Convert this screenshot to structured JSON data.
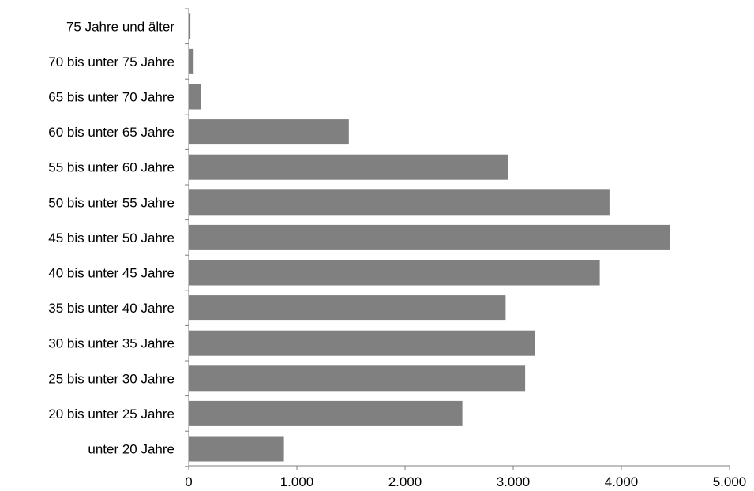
{
  "chart_data": {
    "type": "bar",
    "orientation": "horizontal",
    "title": "",
    "xlabel": "",
    "ylabel": "",
    "categories": [
      "75 Jahre und älter",
      "70 bis unter 75 Jahre",
      "65 bis unter 70 Jahre",
      "60 bis unter 65 Jahre",
      "55 bis unter 60 Jahre",
      "50 bis unter 55 Jahre",
      "45 bis unter 50 Jahre",
      "40 bis unter 45 Jahre",
      "35 bis unter 40 Jahre",
      "30 bis unter 35 Jahre",
      "25 bis unter 30 Jahre",
      "20 bis unter 25 Jahre",
      "unter 20 Jahre"
    ],
    "values": [
      15,
      45,
      110,
      1480,
      2950,
      3890,
      4450,
      3800,
      2930,
      3200,
      3110,
      2530,
      880
    ],
    "xlim": [
      0,
      5000
    ],
    "xticks": [
      0,
      1000,
      2000,
      3000,
      4000,
      5000
    ],
    "xtick_labels": [
      "0",
      "1.000",
      "2.000",
      "3.000",
      "4.000",
      "5.000"
    ],
    "grid": false,
    "legend": "none",
    "bar_color": "#808080"
  }
}
